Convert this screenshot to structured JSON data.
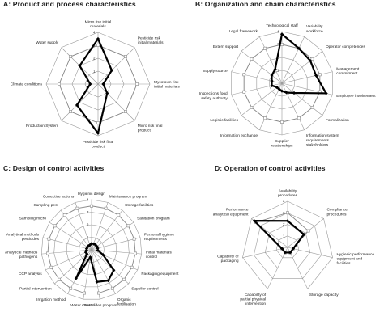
{
  "chart_data": [
    {
      "type": "radar",
      "title": "A: Product and process characteristics",
      "axes": [
        "Micro risk initial materials",
        "Pesticide risk initial materials",
        "Mycotoxin risk initial materials",
        "Micro risk final product",
        "Pesticide risk final product",
        "Production System",
        "Climate conditions",
        "Water supply"
      ],
      "ticks": [
        "1",
        "2",
        "3",
        "4"
      ],
      "rlim": [
        0,
        4
      ],
      "grid": "polygon",
      "series": [
        {
          "values": [
            3.5,
            1.5,
            0.4,
            1.0,
            3.8,
            2.3,
            0.6,
            2.0
          ],
          "color": "#000000",
          "marker": "diamond-filled",
          "width": 2.2
        },
        {
          "values": [
            3.0,
            3.0,
            3.0,
            3.0,
            3.0,
            3.0,
            3.0,
            3.0
          ],
          "color": "#888888",
          "marker": "square-open",
          "width": 0.9
        }
      ]
    },
    {
      "type": "radar",
      "title": "B: Organization and chain characteristics",
      "axes": [
        "Technological staff",
        "Variability workforce",
        "Operator competences",
        "Management commitment",
        "Employee involvement",
        "Formalization",
        "Information system requirements stakeholders",
        "Supplier relationships",
        "Information exchange",
        "Logistic facilities",
        "Inspections food safety authority",
        "Supply source",
        "Extern support",
        "Legal framework"
      ],
      "ticks": [
        "1",
        "2",
        "3",
        "4"
      ],
      "rlim": [
        0,
        4
      ],
      "grid": "polygon",
      "series": [
        {
          "values": [
            3.8,
            3.0,
            2.8,
            2.7,
            3.5,
            1.2,
            0.8,
            0.6,
            0.5,
            0.5,
            0.8,
            0.8,
            1.0,
            1.2
          ],
          "color": "#000000",
          "marker": "diamond-filled",
          "width": 2.2
        },
        {
          "values": [
            3.0,
            3.0,
            3.0,
            3.0,
            3.0,
            3.0,
            3.0,
            3.0,
            3.0,
            3.0,
            3.0,
            3.0,
            3.0,
            3.0
          ],
          "color": "#888888",
          "marker": "square-open",
          "width": 0.9
        }
      ]
    },
    {
      "type": "radar",
      "title": "C: Design of control activities",
      "axes": [
        "Hygienic design",
        "Maintenance program",
        "Storage facilities",
        "Sanitation program",
        "Personal hygiene requirements",
        "Initial materials control",
        "Packaging equipment",
        "Supplier control",
        "Organic fertilisation",
        "Pesticides program",
        "Water Control",
        "Irrigation method",
        "Partial intervention",
        "CCP analysis",
        "Analytical methods pathogens",
        "Analytical methods pesticides",
        "Sampling micro",
        "Sampling pest",
        "Corrective actions"
      ],
      "ticks": [
        "1",
        "2",
        "3",
        "4"
      ],
      "rlim": [
        0,
        4
      ],
      "grid": "polygon",
      "series": [
        {
          "values": [
            0.5,
            0.5,
            0.5,
            0.5,
            0.5,
            0.5,
            1.0,
            2.4,
            2.8,
            2.6,
            0.6,
            2.6,
            0.5,
            0.5,
            0.4,
            0.4,
            0.4,
            0.4,
            0.4
          ],
          "color": "#000000",
          "marker": "diamond-filled",
          "width": 2.2
        },
        {
          "values": [
            3.5,
            3.5,
            3.5,
            3.5,
            3.5,
            3.5,
            3.5,
            3.5,
            3.5,
            3.5,
            3.5,
            3.5,
            3.5,
            3.5,
            3.5,
            3.5,
            3.5,
            3.5,
            3.5
          ],
          "color": "#888888",
          "marker": "square-open",
          "width": 0.9
        }
      ]
    },
    {
      "type": "radar",
      "title": "D: Operation of control activities",
      "axes": [
        "Availability procedures",
        "Compliance procedures",
        "Hygienic performance equipment and facilities",
        "Storage capacity",
        "Capability of partial physical intervention",
        "Capability of packaging",
        "Performance analytical equipment"
      ],
      "ticks": [
        "1",
        "2",
        "3",
        "4"
      ],
      "rlim": [
        0,
        4
      ],
      "grid": "polygon",
      "series": [
        {
          "values": [
            2.3,
            1.8,
            0.5,
            0.5,
            0.5,
            0.5,
            3.7
          ],
          "color": "#000000",
          "marker": "diamond-filled",
          "width": 2.2
        },
        {
          "values": [
            3.0,
            2.3,
            0.5,
            0.5,
            0.5,
            0.5,
            3.5
          ],
          "color": "#888888",
          "marker": "square-open",
          "width": 0.9
        }
      ]
    }
  ]
}
